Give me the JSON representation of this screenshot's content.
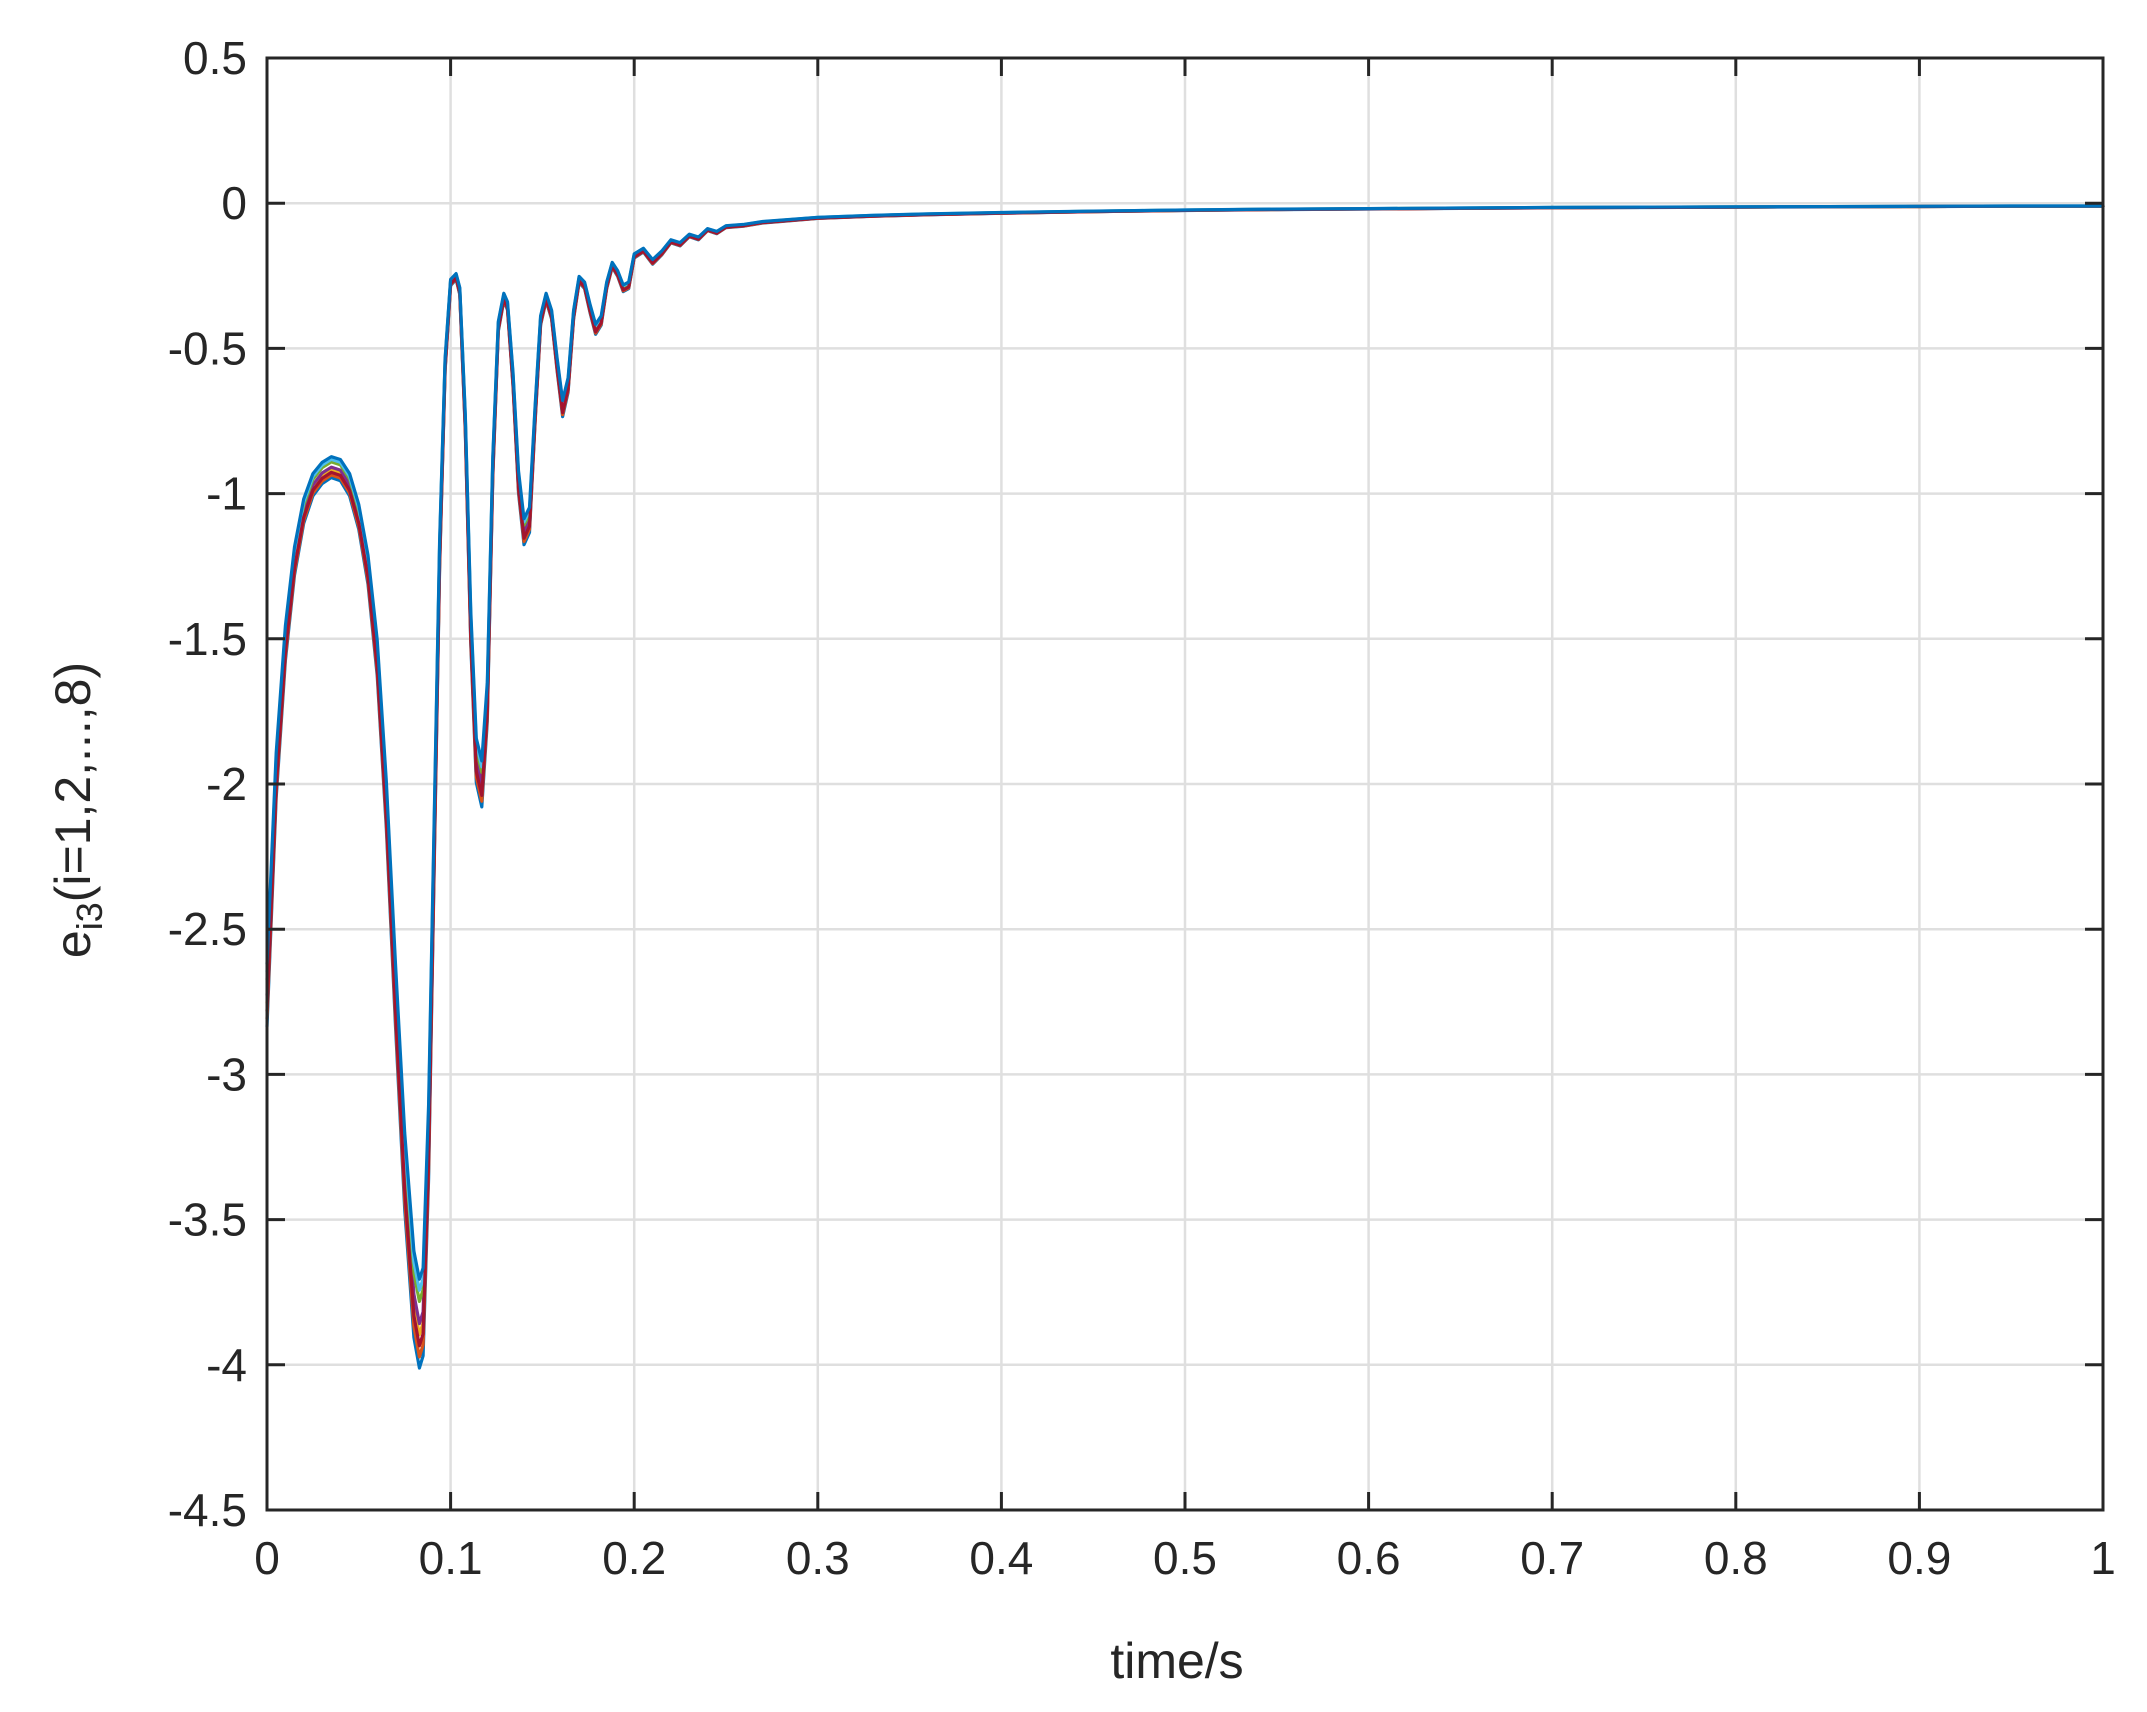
{
  "chart_data": {
    "type": "line",
    "title": "",
    "xlabel": "time/s",
    "ylabel": {
      "base": "e",
      "subscript": "i3",
      "suffix": "(i=1,2,...,8)"
    },
    "xlim": [
      0,
      1
    ],
    "ylim": [
      -4.5,
      0.5
    ],
    "xticks": [
      0,
      0.1,
      0.2,
      0.3,
      0.4,
      0.5,
      0.6,
      0.7,
      0.8,
      0.9,
      1
    ],
    "xtick_labels": [
      "0",
      "0.1",
      "0.2",
      "0.3",
      "0.4",
      "0.5",
      "0.6",
      "0.7",
      "0.8",
      "0.9",
      "1"
    ],
    "yticks": [
      0.5,
      0,
      -0.5,
      -1,
      -1.5,
      -2,
      -2.5,
      -3,
      -3.5,
      -4,
      -4.5
    ],
    "ytick_labels": [
      "0.5",
      "0",
      "-0.5",
      "-1",
      "-1.5",
      "-2",
      "-2.5",
      "-3",
      "-3.5",
      "-4",
      "-4.5"
    ],
    "grid": true,
    "legend": "none",
    "base_curve": {
      "x": [
        0,
        0.005,
        0.01,
        0.015,
        0.02,
        0.025,
        0.03,
        0.035,
        0.04,
        0.045,
        0.05,
        0.055,
        0.06,
        0.065,
        0.07,
        0.075,
        0.08,
        0.083,
        0.085,
        0.088,
        0.091,
        0.094,
        0.097,
        0.1,
        0.103,
        0.105,
        0.108,
        0.111,
        0.114,
        0.117,
        0.12,
        0.123,
        0.126,
        0.129,
        0.131,
        0.134,
        0.137,
        0.14,
        0.143,
        0.146,
        0.149,
        0.152,
        0.155,
        0.158,
        0.161,
        0.164,
        0.167,
        0.17,
        0.173,
        0.176,
        0.179,
        0.182,
        0.185,
        0.188,
        0.191,
        0.194,
        0.197,
        0.2,
        0.205,
        0.21,
        0.215,
        0.22,
        0.225,
        0.23,
        0.235,
        0.24,
        0.245,
        0.25,
        0.26,
        0.27,
        0.28,
        0.3,
        0.33,
        0.36,
        0.4,
        0.45,
        0.5,
        0.55,
        0.6,
        0.65,
        0.7,
        0.75,
        0.8,
        0.85,
        0.9,
        0.95,
        1.0
      ],
      "y": [
        -2.7,
        -1.95,
        -1.5,
        -1.22,
        -1.05,
        -0.96,
        -0.92,
        -0.9,
        -0.91,
        -0.96,
        -1.07,
        -1.25,
        -1.55,
        -2.05,
        -2.7,
        -3.3,
        -3.72,
        -3.82,
        -3.78,
        -3.2,
        -2.2,
        -1.2,
        -0.55,
        -0.27,
        -0.25,
        -0.3,
        -0.75,
        -1.45,
        -1.9,
        -1.98,
        -1.7,
        -0.9,
        -0.42,
        -0.32,
        -0.35,
        -0.6,
        -0.95,
        -1.12,
        -1.08,
        -0.72,
        -0.4,
        -0.32,
        -0.38,
        -0.55,
        -0.7,
        -0.62,
        -0.38,
        -0.26,
        -0.28,
        -0.36,
        -0.43,
        -0.4,
        -0.28,
        -0.21,
        -0.24,
        -0.29,
        -0.28,
        -0.18,
        -0.16,
        -0.2,
        -0.17,
        -0.13,
        -0.14,
        -0.11,
        -0.12,
        -0.09,
        -0.1,
        -0.08,
        -0.075,
        -0.065,
        -0.06,
        -0.05,
        -0.043,
        -0.038,
        -0.033,
        -0.028,
        -0.024,
        -0.021,
        -0.019,
        -0.017,
        -0.015,
        -0.014,
        -0.013,
        -0.012,
        -0.011,
        -0.01,
        -0.01
      ]
    },
    "series": [
      {
        "color": "#0072bd",
        "scale": 1.05
      },
      {
        "color": "#d95319",
        "scale": 1.04
      },
      {
        "color": "#edb120",
        "scale": 1.02
      },
      {
        "color": "#7e2f8e",
        "scale": 1.01
      },
      {
        "color": "#77ac30",
        "scale": 0.99
      },
      {
        "color": "#4dbeee",
        "scale": 0.98
      },
      {
        "color": "#a2142f",
        "scale": 1.03
      },
      {
        "color": "#0072bd",
        "scale": 0.97
      }
    ]
  }
}
